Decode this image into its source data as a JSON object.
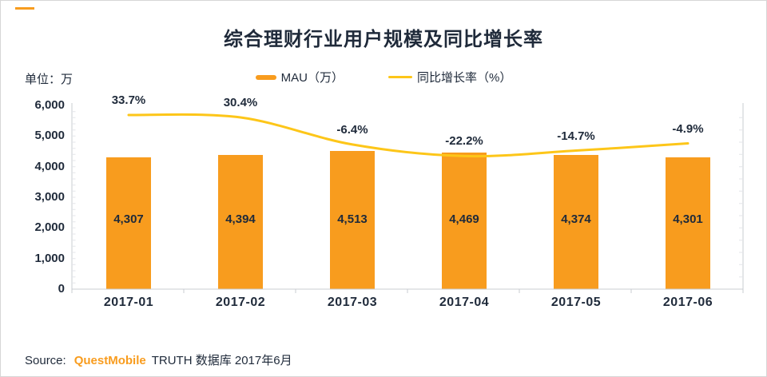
{
  "colors": {
    "orange": "#F89C1E",
    "yellow": "#FDC619",
    "navy": "#1F2A3A",
    "axis": "#C9CCD2",
    "minor_tick": "#E3E5E9"
  },
  "title": "综合理财行业用户规模及同比增长率",
  "unit_label": "单位：万",
  "legend": {
    "bar_label": "MAU（万）",
    "line_label": "同比增长率（%）"
  },
  "source": {
    "label": "Source:",
    "brand": "QuestMobile",
    "detail": "TRUTH 数据库 2017年6月"
  },
  "chart_data": {
    "type": "bar+line",
    "title": "综合理财行业用户规模及同比增长率",
    "categories": [
      "2017-01",
      "2017-02",
      "2017-03",
      "2017-04",
      "2017-05",
      "2017-06"
    ],
    "series": [
      {
        "name": "MAU（万）",
        "type": "bar",
        "color": "#F89C1E",
        "values": [
          4307,
          4394,
          4513,
          4469,
          4374,
          4301
        ],
        "value_labels": [
          "4,307",
          "4,394",
          "4,513",
          "4,469",
          "4,374",
          "4,301"
        ]
      },
      {
        "name": "同比增长率（%）",
        "type": "line",
        "color": "#FDC619",
        "values": [
          33.7,
          30.4,
          -6.4,
          -22.2,
          -14.7,
          -4.9
        ],
        "value_labels": [
          "33.7%",
          "30.4%",
          "-6.4%",
          "-22.2%",
          "-14.7%",
          "-4.9%"
        ]
      }
    ],
    "y_axis": {
      "unit": "单位：万",
      "min": 0,
      "max": 6000,
      "tick_labels": [
        "0",
        "1,000",
        "2,000",
        "3,000",
        "4,000",
        "5,000",
        "6,000"
      ]
    },
    "grid": false,
    "legend_position": "top"
  }
}
